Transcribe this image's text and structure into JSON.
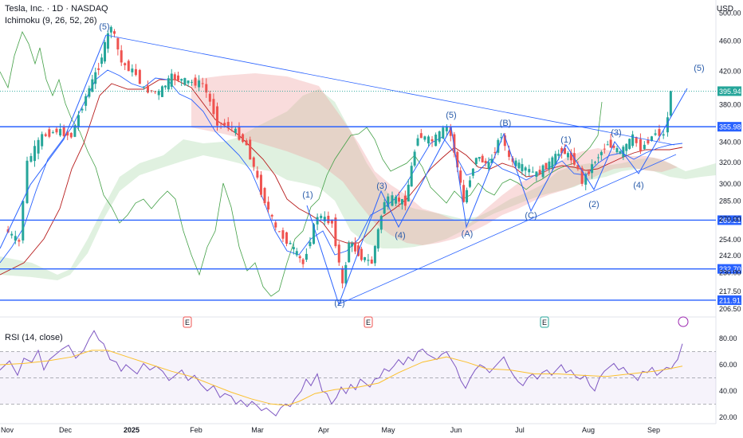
{
  "header": {
    "title": "Tesla, Inc. · 1D · NASDAQ",
    "indicator": "Ichimoku (9, 26, 52, 26)",
    "currency": "USD",
    "rsi_label": "RSI (14, close)"
  },
  "colors": {
    "up": "#26a69a",
    "down": "#ef5350",
    "line": "#2962ff",
    "tenkan": "#2962ff",
    "kijun": "#b71c1c",
    "chikou": "#43a047",
    "cloud_bull": "#a5d6a7",
    "cloud_bear": "#ef9a9a",
    "rsi": "#7e57c2",
    "rsi_ma": "#fbc02d",
    "wave_label": "#2a5caa"
  },
  "chart_data": [
    {
      "type": "candlestick",
      "title": "Tesla, Inc. · 1D · NASDAQ",
      "ylabel": "USD",
      "y_scale": "log",
      "ylim": [
        203,
        520
      ],
      "x_tick_labels": [
        "Nov",
        "Dec",
        "2025",
        "Feb",
        "Mar",
        "Apr",
        "May",
        "Jun",
        "Jul",
        "Aug",
        "Sep"
      ],
      "y_tick_labels": [
        500,
        460,
        420,
        380,
        340,
        320,
        300,
        285,
        270,
        254,
        242,
        230,
        217.5,
        206.5
      ],
      "price_levels": [
        {
          "price": 395.94,
          "label": "395.94",
          "style": "last"
        },
        {
          "price": 355.98,
          "label": "355.98"
        },
        {
          "price": 269.21,
          "label": "269.21"
        },
        {
          "price": 232.7,
          "label": "232.70"
        },
        {
          "price": 211.91,
          "label": "211.91"
        }
      ],
      "close_path": [
        [
          "2024-10-28",
          262
        ],
        [
          "2024-11-04",
          252
        ],
        [
          "2024-11-08",
          320
        ],
        [
          "2024-11-15",
          346
        ],
        [
          "2024-11-22",
          352
        ],
        [
          "2024-11-29",
          346
        ],
        [
          "2024-12-06",
          390
        ],
        [
          "2024-12-12",
          426
        ],
        [
          "2024-12-18",
          482
        ],
        [
          "2024-12-23",
          431
        ],
        [
          "2024-12-30",
          417
        ],
        [
          "2025-01-03",
          398
        ],
        [
          "2025-01-10",
          394
        ],
        [
          "2025-01-16",
          413
        ],
        [
          "2025-01-24",
          407
        ],
        [
          "2025-01-31",
          405
        ],
        [
          "2025-02-07",
          361
        ],
        [
          "2025-02-14",
          355
        ],
        [
          "2025-02-21",
          337
        ],
        [
          "2025-02-28",
          293
        ],
        [
          "2025-03-07",
          262
        ],
        [
          "2025-03-14",
          250
        ],
        [
          "2025-03-20",
          236
        ],
        [
          "2025-03-27",
          273
        ],
        [
          "2025-04-03",
          267
        ],
        [
          "2025-04-08",
          221
        ],
        [
          "2025-04-11",
          252
        ],
        [
          "2025-04-17",
          241
        ],
        [
          "2025-04-22",
          237
        ],
        [
          "2025-04-28",
          285
        ],
        [
          "2025-05-02",
          287
        ],
        [
          "2025-05-08",
          284
        ],
        [
          "2025-05-14",
          347
        ],
        [
          "2025-05-21",
          341
        ],
        [
          "2025-05-28",
          356
        ],
        [
          "2025-05-30",
          346
        ],
        [
          "2025-06-05",
          284
        ],
        [
          "2025-06-11",
          326
        ],
        [
          "2025-06-17",
          317
        ],
        [
          "2025-06-23",
          348
        ],
        [
          "2025-06-27",
          323
        ],
        [
          "2025-07-03",
          315
        ],
        [
          "2025-07-10",
          309
        ],
        [
          "2025-07-16",
          319
        ],
        [
          "2025-07-22",
          332
        ],
        [
          "2025-07-28",
          321
        ],
        [
          "2025-08-01",
          302
        ],
        [
          "2025-08-07",
          322
        ],
        [
          "2025-08-13",
          339
        ],
        [
          "2025-08-19",
          329
        ],
        [
          "2025-08-25",
          345
        ],
        [
          "2025-08-29",
          333
        ],
        [
          "2025-09-05",
          350
        ],
        [
          "2025-09-09",
          347
        ],
        [
          "2025-09-11",
          368
        ],
        [
          "2025-09-12",
          395.94
        ]
      ],
      "elliott_labels": [
        "(5)",
        "(1)",
        "(2)",
        "(3)",
        "(4)",
        "(5)",
        "(A)",
        "(B)",
        "(C)",
        "(1)",
        "(2)",
        "(3)",
        "(4)",
        "(5)"
      ],
      "event_markers": [
        "E",
        "E",
        "E"
      ]
    },
    {
      "type": "line",
      "title": "RSI (14, close)",
      "ylim": [
        15,
        88
      ],
      "y_tick_labels": [
        80.0,
        60.0,
        40.0,
        20.0
      ],
      "reference_lines": [
        70,
        50,
        30
      ],
      "series": [
        {
          "name": "RSI",
          "color": "#7e57c2",
          "values": [
            [
              0,
              56
            ],
            [
              12,
              63
            ],
            [
              22,
              52
            ],
            [
              30,
              65
            ],
            [
              40,
              62
            ],
            [
              48,
              71
            ],
            [
              55,
              56
            ],
            [
              62,
              64
            ],
            [
              70,
              68
            ],
            [
              78,
              72
            ],
            [
              86,
              75
            ],
            [
              95,
              65
            ],
            [
              105,
              71
            ],
            [
              112,
              80
            ],
            [
              118,
              86
            ],
            [
              124,
              79
            ],
            [
              130,
              76
            ],
            [
              138,
              64
            ],
            [
              146,
              62
            ],
            [
              152,
              55
            ],
            [
              158,
              60
            ],
            [
              166,
              56
            ],
            [
              172,
              53
            ],
            [
              180,
              61
            ],
            [
              188,
              56
            ],
            [
              196,
              59
            ],
            [
              204,
              55
            ],
            [
              212,
              48
            ],
            [
              220,
              52
            ],
            [
              228,
              56
            ],
            [
              236,
              48
            ],
            [
              244,
              52
            ],
            [
              252,
              45
            ],
            [
              260,
              40
            ],
            [
              268,
              44
            ],
            [
              276,
              35
            ],
            [
              282,
              38
            ],
            [
              290,
              36
            ],
            [
              296,
              30
            ],
            [
              302,
              33
            ],
            [
              310,
              28
            ],
            [
              316,
              32
            ],
            [
              322,
              29
            ],
            [
              328,
              25
            ],
            [
              334,
              27
            ],
            [
              340,
              24
            ],
            [
              346,
              21
            ],
            [
              352,
              27
            ],
            [
              358,
              30
            ],
            [
              364,
              28
            ],
            [
              370,
              34
            ],
            [
              378,
              40
            ],
            [
              384,
              49
            ],
            [
              390,
              44
            ],
            [
              398,
              53
            ],
            [
              404,
              40
            ],
            [
              410,
              38
            ],
            [
              416,
              30
            ],
            [
              422,
              35
            ],
            [
              428,
              43
            ],
            [
              434,
              38
            ],
            [
              440,
              45
            ],
            [
              446,
              41
            ],
            [
              452,
              49
            ],
            [
              458,
              46
            ],
            [
              464,
              43
            ],
            [
              470,
              49
            ],
            [
              476,
              50
            ],
            [
              482,
              57
            ],
            [
              488,
              55
            ],
            [
              494,
              59
            ],
            [
              500,
              64
            ],
            [
              506,
              60
            ],
            [
              512,
              66
            ],
            [
              518,
              63
            ],
            [
              524,
              70
            ],
            [
              530,
              72
            ],
            [
              536,
              68
            ],
            [
              542,
              66
            ],
            [
              548,
              64
            ],
            [
              554,
              68
            ],
            [
              560,
              70
            ],
            [
              566,
              64
            ],
            [
              572,
              58
            ],
            [
              578,
              48
            ],
            [
              584,
              42
            ],
            [
              590,
              50
            ],
            [
              596,
              56
            ],
            [
              602,
              60
            ],
            [
              608,
              58
            ],
            [
              614,
              54
            ],
            [
              620,
              58
            ],
            [
              626,
              62
            ],
            [
              632,
              66
            ],
            [
              638,
              58
            ],
            [
              644,
              52
            ],
            [
              650,
              47
            ],
            [
              656,
              44
            ],
            [
              662,
              50
            ],
            [
              668,
              53
            ],
            [
              674,
              49
            ],
            [
              680,
              54
            ],
            [
              686,
              56
            ],
            [
              692,
              52
            ],
            [
              698,
              56
            ],
            [
              704,
              60
            ],
            [
              710,
              54
            ],
            [
              716,
              56
            ],
            [
              722,
              51
            ],
            [
              728,
              49
            ],
            [
              734,
              52
            ],
            [
              740,
              44
            ],
            [
              746,
              40
            ],
            [
              752,
              50
            ],
            [
              758,
              55
            ],
            [
              764,
              58
            ],
            [
              770,
              61
            ],
            [
              776,
              56
            ],
            [
              782,
              58
            ],
            [
              788,
              53
            ],
            [
              794,
              52
            ],
            [
              800,
              48
            ],
            [
              806,
              55
            ],
            [
              812,
              54
            ],
            [
              818,
              58
            ],
            [
              824,
              52
            ],
            [
              830,
              55
            ],
            [
              836,
              58
            ],
            [
              842,
              57
            ],
            [
              846,
              61
            ],
            [
              850,
              64
            ],
            [
              853,
              70
            ],
            [
              856,
              76
            ]
          ]
        },
        {
          "name": "RSI-based MA",
          "color": "#fbc02d",
          "values": [
            [
              0,
              60
            ],
            [
              30,
              61
            ],
            [
              60,
              63
            ],
            [
              90,
              66
            ],
            [
              115,
              71
            ],
            [
              135,
              71
            ],
            [
              160,
              66
            ],
            [
              190,
              60
            ],
            [
              215,
              55
            ],
            [
              240,
              51
            ],
            [
              265,
              45
            ],
            [
              290,
              39
            ],
            [
              315,
              34
            ],
            [
              340,
              30
            ],
            [
              360,
              29
            ],
            [
              375,
              32
            ],
            [
              395,
              38
            ],
            [
              420,
              41
            ],
            [
              450,
              43
            ],
            [
              475,
              46
            ],
            [
              500,
              54
            ],
            [
              530,
              62
            ],
            [
              560,
              66
            ],
            [
              585,
              62
            ],
            [
              610,
              57
            ],
            [
              640,
              56
            ],
            [
              670,
              53
            ],
            [
              700,
              53
            ],
            [
              730,
              52
            ],
            [
              760,
              51
            ],
            [
              790,
              53
            ],
            [
              820,
              55
            ],
            [
              840,
              57
            ],
            [
              856,
              59
            ]
          ]
        }
      ]
    }
  ]
}
